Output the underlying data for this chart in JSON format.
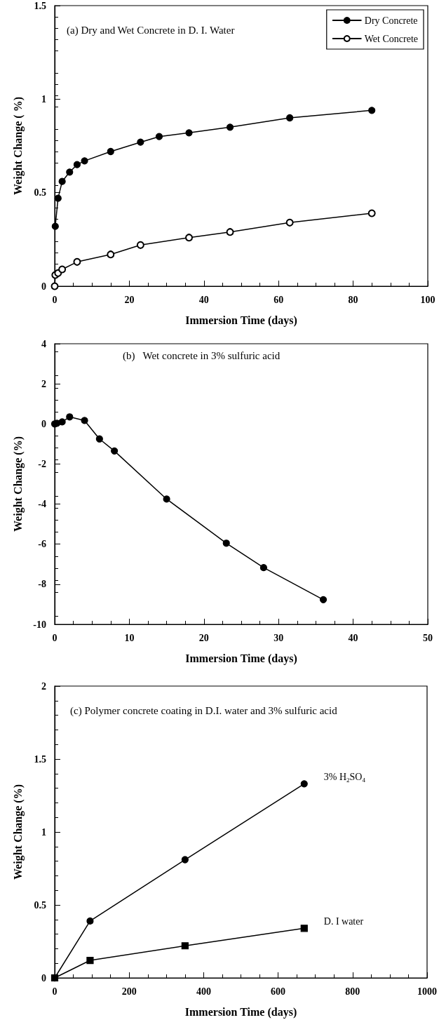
{
  "chart_data": [
    {
      "type": "line",
      "title": "(a) Dry and Wet Concrete in D. I. Water",
      "xlabel": "Immersion Time (days)",
      "ylabel": "Weight Change ( %)",
      "xlim": [
        0,
        100
      ],
      "xticks": [
        0,
        20,
        40,
        60,
        80,
        100
      ],
      "ylim": [
        0,
        1.5
      ],
      "yticks": [
        0,
        0.5,
        1,
        1.5
      ],
      "grid": false,
      "legend": "top right",
      "line_style": "solid",
      "series": [
        {
          "name": "Dry Concrete",
          "color": "#000000",
          "marker": "circle",
          "x": [
            0.15,
            0.9,
            2,
            4,
            6,
            8,
            15,
            23,
            28,
            36,
            47,
            63,
            85
          ],
          "values": [
            0.32,
            0.47,
            0.56,
            0.61,
            0.65,
            0.67,
            0.72,
            0.77,
            0.8,
            0.82,
            0.85,
            0.9,
            0.94
          ]
        },
        {
          "name": "Wet Concrete",
          "color": "#000000",
          "marker": "circle-open",
          "x": [
            0,
            0.15,
            0.9,
            2,
            6,
            15,
            23,
            36,
            47,
            63,
            85
          ],
          "values": [
            0,
            0.06,
            0.07,
            0.09,
            0.13,
            0.17,
            0.22,
            0.26,
            0.29,
            0.34,
            0.39
          ]
        }
      ]
    },
    {
      "type": "line",
      "title": "(b)   Wet concrete in 3% sulfuric acid",
      "xlabel": "Immersion Time (days)",
      "ylabel": "Weight Change (%)",
      "xlim": [
        0,
        50
      ],
      "xticks": [
        0,
        10,
        20,
        30,
        40,
        50
      ],
      "ylim": [
        -10,
        4
      ],
      "yticks": [
        -10,
        -8,
        -6,
        -4,
        -2,
        0,
        2,
        4
      ],
      "grid": false,
      "legend": false,
      "line_style": "solid",
      "series": [
        {
          "color": "#000000",
          "marker": "circle",
          "x": [
            0,
            0.3,
            1,
            2,
            4,
            6,
            8,
            15,
            23,
            28,
            36
          ],
          "values": [
            0,
            0.03,
            0.1,
            0.35,
            0.17,
            -0.75,
            -1.35,
            -3.75,
            -5.95,
            -7.17,
            -8.77
          ]
        }
      ]
    },
    {
      "type": "line",
      "title": "(c) Polymer concrete coating in D.I. water and 3% sulfuric acid",
      "xlabel": "Immersion Time (days)",
      "ylabel": "Weight Change (%)",
      "xlim": [
        0,
        1000
      ],
      "xticks": [
        0,
        200,
        400,
        600,
        800,
        1000
      ],
      "ylim": [
        0,
        2
      ],
      "yticks": [
        0,
        0.5,
        1,
        1.5,
        2
      ],
      "grid": false,
      "legend": false,
      "line_style": "solid",
      "series": [
        {
          "name": "3% H$_{2}$SO$_{4}$",
          "color": "#000000",
          "marker": "circle",
          "x": [
            0,
            95,
            350,
            670
          ],
          "values": [
            0,
            0.39,
            0.81,
            1.33
          ]
        },
        {
          "name": "D. I water",
          "color": "#000000",
          "marker": "square",
          "x": [
            0,
            95,
            350,
            670
          ],
          "values": [
            0,
            0.12,
            0.22,
            0.34
          ]
        }
      ]
    }
  ]
}
